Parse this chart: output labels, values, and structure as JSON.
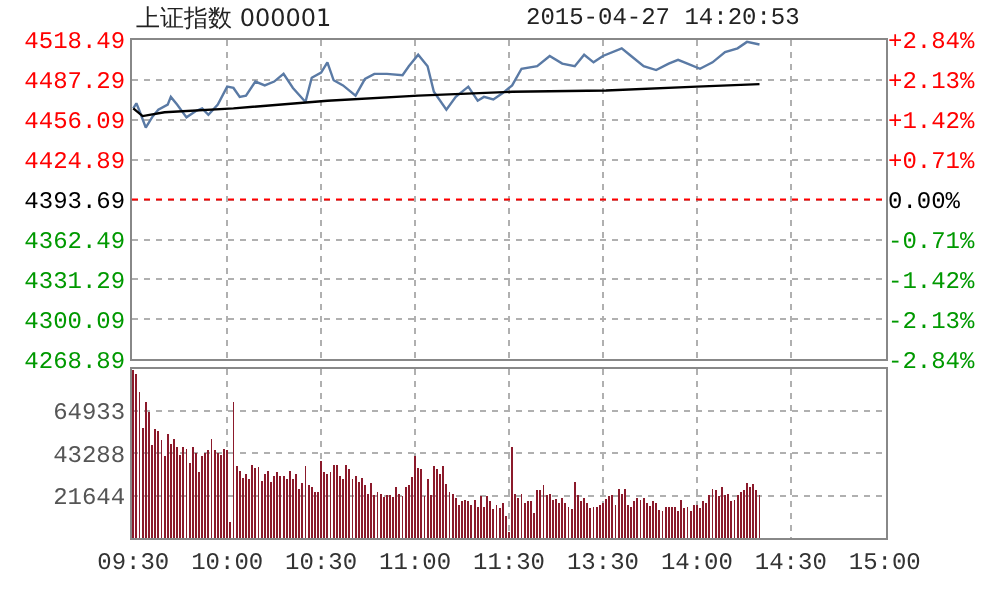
{
  "chart_data": [
    {
      "type": "line",
      "title": "上证指数 000001",
      "annotations": [
        "2015-04-27 14:20:53"
      ],
      "categories": [
        null,
        null,
        null,
        null,
        null,
        null,
        null,
        null,
        null,
        null,
        null,
        null,
        null,
        null,
        null,
        null,
        null,
        null,
        null,
        null,
        null,
        null,
        null,
        null,
        null,
        null,
        null,
        null,
        null,
        null,
        null,
        null,
        null,
        null,
        null,
        null,
        null,
        null,
        null,
        null,
        null,
        null,
        null,
        null,
        null,
        null,
        null,
        null,
        null,
        null,
        null,
        null,
        null,
        null,
        null,
        null,
        null,
        null,
        null,
        null,
        null,
        null,
        null,
        null,
        null,
        null,
        null,
        null,
        null,
        null,
        null,
        null,
        null,
        null,
        null,
        null,
        null,
        null,
        null,
        null,
        null,
        null,
        null,
        null,
        null,
        null,
        null,
        null,
        null,
        null,
        null,
        null,
        null,
        null,
        null,
        null,
        null,
        null,
        null,
        null,
        null,
        null,
        null,
        null,
        null,
        null,
        null,
        null,
        null,
        null,
        null,
        null,
        null,
        null,
        null,
        null,
        null,
        null,
        null,
        null,
        null,
        null,
        null,
        null,
        null,
        null,
        null,
        null,
        null,
        null,
        null,
        null,
        null,
        null,
        null,
        null,
        null,
        null,
        null,
        null,
        null,
        null,
        null,
        null,
        null,
        null,
        null,
        null,
        null,
        null,
        null,
        null,
        null,
        null,
        null,
        null,
        null,
        null,
        null,
        null,
        null,
        null,
        null,
        null,
        null,
        null,
        null,
        null,
        null,
        null,
        null,
        null,
        null,
        null,
        null,
        null,
        null,
        null,
        null,
        null,
        null,
        null,
        null,
        null,
        null,
        null,
        null,
        null,
        null,
        null,
        null,
        null,
        null,
        null,
        null,
        null,
        null,
        null,
        null,
        null,
        null,
        null,
        null,
        null,
        null,
        null,
        null,
        null,
        null,
        null,
        null,
        null,
        null,
        null,
        null,
        null,
        null,
        null,
        null,
        null,
        null,
        null,
        null,
        null,
        null,
        null,
        null,
        null,
        null,
        null,
        null,
        null,
        null,
        null,
        null,
        null,
        null,
        null,
        null,
        null,
        null
      ],
      "series": [
        {
          "color": "#5a7aa5",
          "values": [
            4465,
            4469,
            4463,
            null,
            4450,
            null,
            4458,
            null,
            4464,
            null,
            null,
            4468,
            4474,
            null,
            4468,
            null,
            null,
            4458,
            null,
            null,
            4463,
            null,
            4465,
            null,
            4460,
            null,
            null,
            4468,
            null,
            null,
            4482,
            null,
            4481,
            null,
            4474,
            null,
            4475,
            null,
            null,
            4486,
            null,
            null,
            4483,
            null,
            null,
            4486,
            null,
            null,
            4492,
            null,
            null,
            4481,
            null,
            null,
            null,
            4470,
            null,
            4489,
            null,
            null,
            4493,
            null,
            4501,
            null,
            4487,
            null,
            null,
            4483,
            null,
            null,
            null,
            4475,
            null,
            null,
            4488,
            null,
            null,
            4492,
            null,
            null,
            null,
            4492,
            null,
            null,
            null,
            null,
            4491,
            null,
            4498,
            null,
            null,
            4507,
            null,
            null,
            4498,
            null,
            4478,
            null,
            null,
            null,
            4464,
            null,
            null,
            4474,
            null,
            null,
            null,
            4482,
            null,
            null,
            4471,
            null,
            4474,
            null,
            null,
            4472,
            null,
            null,
            4477,
            null,
            null,
            4483,
            null,
            null,
            4496,
            null,
            null,
            null,
            null,
            4498,
            null,
            null,
            null,
            4506,
            null,
            null,
            null,
            4500,
            null,
            null,
            null,
            4498,
            null,
            null,
            4507,
            null,
            null,
            4501,
            null,
            null,
            4506,
            null,
            null,
            null,
            null,
            null,
            4512,
            null,
            null,
            4506,
            null,
            null,
            null,
            4498,
            null,
            null,
            null,
            4495,
            null,
            null,
            null,
            4500,
            null,
            null,
            4503,
            null,
            null,
            4500,
            null,
            null,
            null,
            4496,
            null,
            null,
            null,
            4501,
            null,
            null,
            null,
            4509,
            null,
            null,
            null,
            4512,
            null,
            null,
            4517,
            null,
            null,
            null,
            4515,
            null,
            null,
            null,
            null,
            null,
            null,
            null,
            null,
            null,
            null,
            null,
            null,
            null,
            null,
            null,
            null,
            null,
            null,
            null,
            null,
            null,
            null,
            null,
            null,
            null,
            null,
            null,
            null,
            null,
            null,
            null,
            null,
            null,
            null,
            null,
            null,
            null,
            null,
            null,
            null
          ]
        },
        {
          "color": "#000000",
          "values": [
            4465,
            null,
            null,
            4459,
            null,
            null,
            null,
            null,
            null,
            null,
            4462,
            null,
            null,
            null,
            null,
            null,
            null,
            null,
            null,
            null,
            null,
            null,
            null,
            null,
            null,
            null,
            null,
            null,
            null,
            null,
            null,
            null,
            4465,
            null,
            null,
            null,
            null,
            null,
            null,
            null,
            null,
            null,
            null,
            null,
            null,
            null,
            null,
            null,
            null,
            null,
            null,
            null,
            null,
            null,
            null,
            null,
            null,
            null,
            null,
            null,
            null,
            null,
            4471,
            null,
            null,
            null,
            null,
            null,
            null,
            null,
            null,
            null,
            null,
            null,
            null,
            null,
            null,
            null,
            null,
            null,
            null,
            null,
            null,
            null,
            null,
            null,
            null,
            null,
            null,
            null,
            null,
            4475,
            null,
            null,
            null,
            null,
            null,
            null,
            null,
            null,
            null,
            null,
            null,
            null,
            null,
            null,
            null,
            null,
            null,
            null,
            null,
            null,
            null,
            null,
            null,
            null,
            null,
            null,
            null,
            null,
            null,
            4478,
            null,
            null,
            null,
            null,
            null,
            null,
            null,
            null,
            null,
            null,
            null,
            null,
            null,
            null,
            null,
            null,
            null,
            null,
            null,
            null,
            null,
            null,
            null,
            null,
            null,
            null,
            null,
            null,
            null,
            4479,
            null,
            null,
            null,
            null,
            null,
            null,
            null,
            null,
            null,
            null,
            null,
            null,
            null,
            null,
            null,
            null,
            null,
            null,
            null,
            null,
            null,
            null,
            null,
            null,
            null,
            null,
            null,
            null,
            4482,
            null,
            null,
            null,
            null,
            null,
            null,
            null,
            null,
            null,
            null,
            null,
            null,
            null,
            null,
            null,
            null,
            null,
            null,
            null,
            4484,
            null,
            null,
            null,
            null,
            null,
            null,
            null,
            null,
            null,
            null,
            null,
            null,
            null,
            null,
            null,
            null,
            null,
            null,
            null,
            null,
            null,
            null,
            null,
            null,
            null,
            null,
            null,
            null,
            null,
            null,
            null,
            null,
            null,
            null,
            null,
            null,
            null,
            null,
            null,
            null
          ]
        }
      ],
      "ylim": [
        4268.89,
        4518.49
      ],
      "yticks": [
        4268.89,
        4300.09,
        4331.29,
        4362.49,
        4393.69,
        4424.89,
        4456.09,
        4487.29,
        4518.49
      ],
      "y2lim": [
        -2.84,
        2.84
      ],
      "y2ticks": [
        {
          "value": -2.84,
          "label": "-2.84%"
        },
        {
          "value": -2.13,
          "label": "-2.13%"
        },
        {
          "value": -1.42,
          "label": "-1.42%"
        },
        {
          "value": -0.71,
          "label": "-0.71%"
        },
        {
          "value": 0,
          "label": "0.00%"
        },
        {
          "value": 0.71,
          "label": "+0.71%"
        },
        {
          "value": 1.42,
          "label": "+1.42%"
        },
        {
          "value": 2.13,
          "label": "+2.13%"
        },
        {
          "value": 2.84,
          "label": "+2.84%"
        }
      ],
      "ref_lines": [
        {
          "axis": "y",
          "value": 4393.69,
          "color": "#ff0000",
          "line_style": "dotted"
        }
      ],
      "grid": true,
      "tick_labels": "y",
      "line_style": "solid",
      "marker": "none"
    },
    {
      "type": "bar",
      "color": "#8b1a2b",
      "categories": [
        "09:30",
        null,
        null,
        null,
        null,
        null,
        null,
        null,
        null,
        null,
        null,
        null,
        null,
        null,
        null,
        null,
        null,
        null,
        null,
        null,
        null,
        null,
        null,
        null,
        null,
        null,
        null,
        null,
        null,
        null,
        "10:00",
        null,
        null,
        null,
        null,
        null,
        null,
        null,
        null,
        null,
        null,
        null,
        null,
        null,
        null,
        null,
        null,
        null,
        null,
        null,
        null,
        null,
        null,
        null,
        null,
        null,
        null,
        null,
        null,
        null,
        "10:30",
        null,
        null,
        null,
        null,
        null,
        null,
        null,
        null,
        null,
        null,
        null,
        null,
        null,
        null,
        null,
        null,
        null,
        null,
        null,
        null,
        null,
        null,
        null,
        null,
        null,
        null,
        null,
        null,
        null,
        "11:00",
        null,
        null,
        null,
        null,
        null,
        null,
        null,
        null,
        null,
        null,
        null,
        null,
        null,
        null,
        null,
        null,
        null,
        null,
        null,
        null,
        null,
        null,
        null,
        null,
        null,
        null,
        null,
        null,
        null,
        "11:30",
        null,
        null,
        null,
        null,
        null,
        null,
        null,
        null,
        null,
        null,
        null,
        null,
        null,
        null,
        null,
        null,
        null,
        null,
        null,
        null,
        null,
        null,
        null,
        null,
        null,
        null,
        null,
        null,
        null,
        "13:30",
        null,
        null,
        null,
        null,
        null,
        null,
        null,
        null,
        null,
        null,
        null,
        null,
        null,
        null,
        null,
        null,
        null,
        null,
        null,
        null,
        null,
        null,
        null,
        null,
        null,
        null,
        null,
        null,
        null,
        "14:00",
        null,
        null,
        null,
        null,
        null,
        null,
        null,
        null,
        null,
        null,
        null,
        null,
        null,
        null,
        null,
        null,
        null,
        null,
        null,
        null,
        null,
        null,
        null,
        null,
        null,
        null,
        null,
        null,
        null,
        "14:30",
        null,
        null,
        null,
        null,
        null,
        null,
        null,
        null,
        null,
        null,
        null,
        null,
        null,
        null,
        null,
        null,
        null,
        null,
        null,
        null,
        null,
        null,
        null,
        null,
        null,
        null,
        null,
        null,
        null,
        "15:00"
      ],
      "values": [
        86000,
        83600,
        74500,
        56400,
        69500,
        64600,
        47600,
        55800,
        54800,
        49900,
        41700,
        53100,
        48200,
        50500,
        46600,
        42600,
        46600,
        45600,
        38400,
        46600,
        43300,
        33500,
        41700,
        43300,
        44900,
        50500,
        44900,
        43300,
        42300,
        45600,
        44900,
        8200,
        69500,
        36700,
        34400,
        30800,
        32500,
        30200,
        37400,
        35800,
        36100,
        29200,
        32800,
        34400,
        28500,
        31800,
        33500,
        31800,
        31800,
        30200,
        34400,
        30200,
        32500,
        25300,
        27900,
        36700,
        26900,
        25900,
        23600,
        23600,
        39400,
        33500,
        32800,
        33500,
        37400,
        37400,
        31800,
        30200,
        37400,
        35100,
        30200,
        31800,
        28500,
        30800,
        26900,
        22600,
        27900,
        22000,
        23600,
        22600,
        21000,
        22000,
        22000,
        21000,
        25900,
        22600,
        21300,
        25900,
        26900,
        31200,
        41700,
        35800,
        35100,
        21300,
        30200,
        22000,
        36700,
        35100,
        32500,
        36700,
        27600,
        23600,
        22600,
        20300,
        17100,
        18700,
        19400,
        18700,
        17100,
        19400,
        16100,
        21300,
        16100,
        21300,
        18700,
        14800,
        17100,
        15400,
        18000,
        11500,
        3300,
        46600,
        22600,
        20300,
        22600,
        18000,
        18700,
        18700,
        12800,
        24600,
        24600,
        26900,
        22000,
        22600,
        19400,
        19700,
        18000,
        20300,
        17700,
        16100,
        14800,
        28500,
        22000,
        18700,
        20300,
        18000,
        15400,
        16100,
        16100,
        17100,
        17700,
        19700,
        21300,
        22000,
        17100,
        25300,
        22600,
        25300,
        17100,
        16100,
        18700,
        20300,
        19400,
        20300,
        17700,
        16400,
        18700,
        17700,
        14400,
        13800,
        16100,
        16100,
        16100,
        16100,
        13800,
        19400,
        15400,
        16100,
        13800,
        17100,
        17100,
        15400,
        18700,
        18000,
        22000,
        25300,
        24600,
        21300,
        25900,
        22000,
        22600,
        18700,
        19400,
        22000,
        23600,
        24600,
        27900,
        25900,
        27600,
        24600,
        22000,
        null,
        null,
        null,
        null,
        null,
        null,
        null,
        null,
        null,
        null,
        null,
        null,
        null,
        null,
        null,
        null,
        null,
        null,
        null,
        null,
        null,
        null,
        null,
        null,
        null,
        null,
        null,
        null,
        null,
        null,
        null,
        null,
        null,
        null,
        null,
        null,
        null,
        null,
        null,
        null
      ],
      "ylim": [
        0,
        86577
      ],
      "yticks": [
        21644,
        43288,
        64933
      ],
      "grid": true
    }
  ]
}
